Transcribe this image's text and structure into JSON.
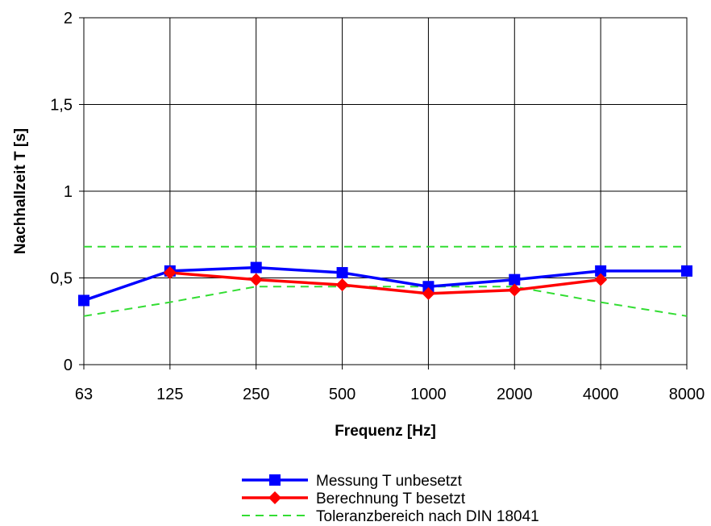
{
  "chart_data": {
    "type": "line",
    "title": "",
    "xlabel": "Frequenz [Hz]",
    "ylabel": "Nachhallzeit T [s]",
    "categories": [
      "63",
      "125",
      "250",
      "500",
      "1000",
      "2000",
      "4000",
      "8000"
    ],
    "y_ticks": [
      "0",
      "0,5",
      "1",
      "1,5",
      "2"
    ],
    "y_tick_values": [
      0,
      0.5,
      1,
      1.5,
      2
    ],
    "ylim": [
      0,
      2
    ],
    "grid": true,
    "legend_position": "bottom",
    "series": [
      {
        "name": "Messung T unbesetzt",
        "color": "#0000ff",
        "marker": "square",
        "style": "solid",
        "values": [
          0.37,
          0.54,
          0.56,
          0.53,
          0.45,
          0.49,
          0.54,
          0.54
        ]
      },
      {
        "name": "Berechnung T besetzt",
        "color": "#ff0000",
        "marker": "diamond",
        "style": "solid",
        "values": [
          null,
          0.53,
          0.49,
          0.46,
          0.41,
          0.43,
          0.49,
          null
        ]
      },
      {
        "name": "Toleranzbereich nach DIN 18041",
        "color": "#33dd33",
        "marker": "none",
        "style": "dashed",
        "upper": [
          0.68,
          0.68,
          0.68,
          0.68,
          0.68,
          0.68,
          0.68,
          0.68
        ],
        "lower": [
          0.28,
          0.36,
          0.45,
          0.45,
          0.45,
          0.45,
          0.36,
          0.28
        ]
      }
    ]
  }
}
